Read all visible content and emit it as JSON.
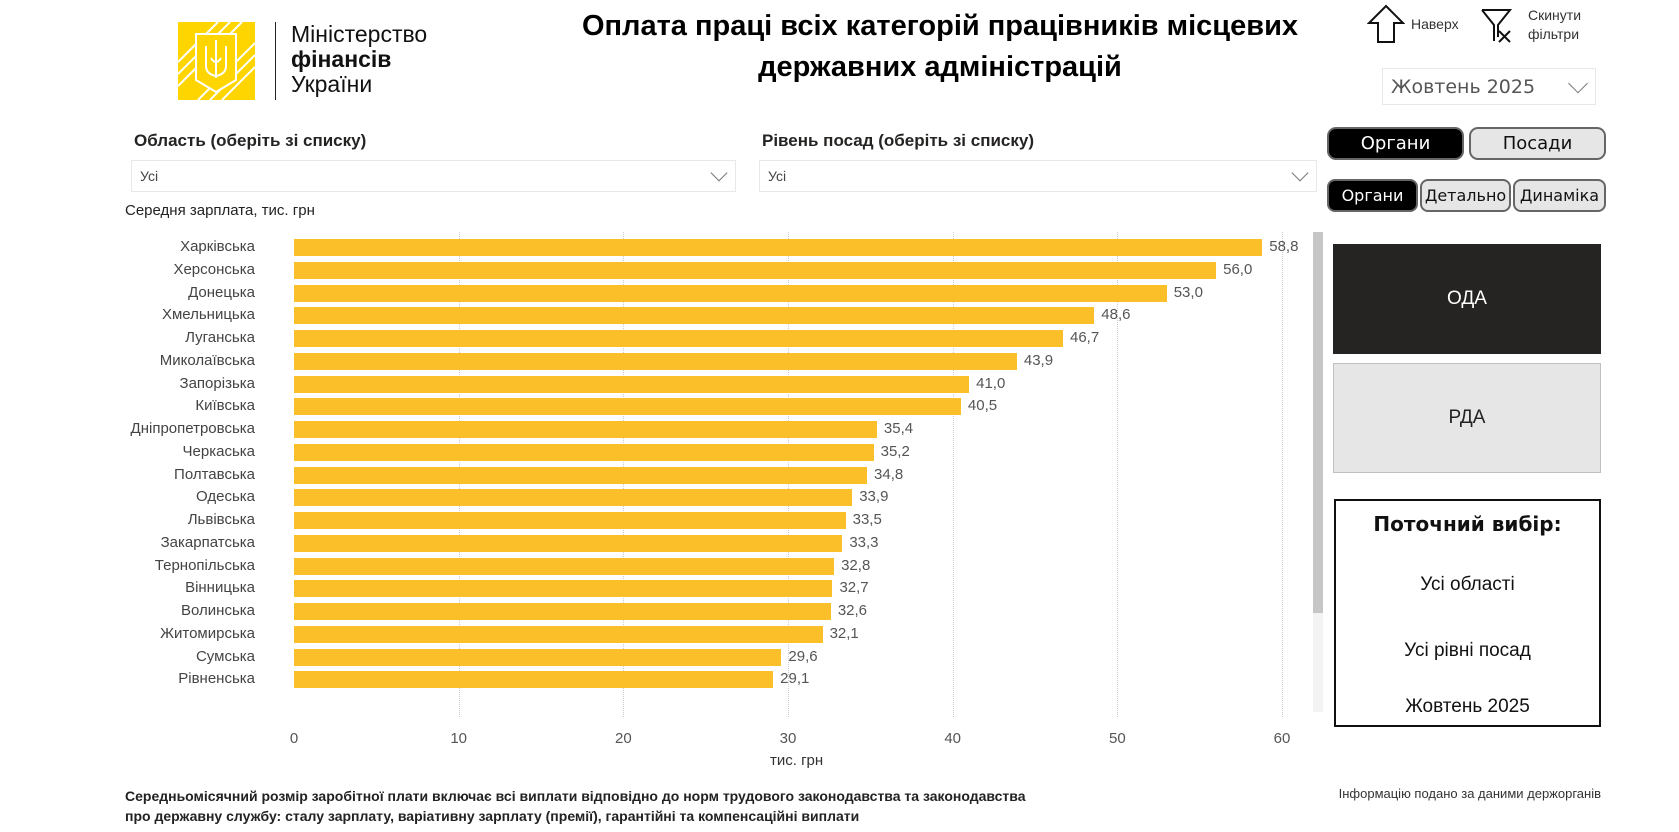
{
  "logo": {
    "line1": "Міністерство",
    "line2": "фінансів",
    "line3": "України",
    "color": "#FFD500"
  },
  "title": "Оплата праці всіх категорій працівників місцевих державних адміністрацій",
  "top_actions": {
    "back_label": "Наверх",
    "back_icon": "arrow-up-icon",
    "reset_label_1": "Скинути",
    "reset_label_2": "фільтри",
    "reset_icon": "filter-clear-icon"
  },
  "period_dropdown": {
    "value": "Жовтень 2025"
  },
  "filters": {
    "region": {
      "label": "Область (оберіть зі списку)",
      "value": "Усі"
    },
    "level": {
      "label": "Рівень посад (оберіть зі списку)",
      "value": "Усі"
    }
  },
  "view_toggle": {
    "items": [
      "Органи",
      "Посади"
    ],
    "active": "Органи"
  },
  "sub_toggle": {
    "items": [
      "Органи",
      "Детально",
      "Динаміка"
    ],
    "active": "Органи"
  },
  "org_buttons": {
    "oda": "ОДА",
    "rda": "РДА",
    "active": "ОДА"
  },
  "current_selection": {
    "title": "Поточний вибір:",
    "region": "Усі області",
    "level": "Усі рівні посад",
    "period": "Жовтень 2025"
  },
  "chart_data": {
    "type": "bar",
    "orientation": "horizontal",
    "title": "Середня зарплата, тис. грн",
    "xlabel": "тис. грн",
    "ylabel": "",
    "xlim": [
      0,
      60
    ],
    "xticks": [
      0,
      10,
      20,
      30,
      40,
      50,
      60
    ],
    "grid": true,
    "bar_color": "#FBBF2A",
    "categories": [
      "Харківська",
      "Херсонська",
      "Донецька",
      "Хмельницька",
      "Луганська",
      "Миколаївська",
      "Запорізька",
      "Київська",
      "Дніпропетровська",
      "Черкаська",
      "Полтавська",
      "Одеська",
      "Львівська",
      "Закарпатська",
      "Тернопільська",
      "Вінницька",
      "Волинська",
      "Житомирська",
      "Сумська",
      "Рівненська"
    ],
    "values": [
      58.8,
      56.0,
      53.0,
      48.6,
      46.7,
      43.9,
      41.0,
      40.5,
      35.4,
      35.2,
      34.8,
      33.9,
      33.5,
      33.3,
      32.8,
      32.7,
      32.6,
      32.1,
      29.6,
      29.1
    ],
    "value_labels": [
      "58,8",
      "56,0",
      "53,0",
      "48,6",
      "46,7",
      "43,9",
      "41,0",
      "40,5",
      "35,4",
      "35,2",
      "34,8",
      "33,9",
      "33,5",
      "33,3",
      "32,8",
      "32,7",
      "32,6",
      "32,1",
      "29,6",
      "29,1"
    ]
  },
  "footer": {
    "note_line1": "Середньомісячний розмір заробітної плати включає всі виплати відповідно до норм трудового законодавства та законодавства",
    "note_line2": "про державну службу: сталу зарплату, варіативну зарплату (премії), гарантійні та компенсаційні виплати",
    "source": "Інформацію подано за даними держорганів"
  }
}
